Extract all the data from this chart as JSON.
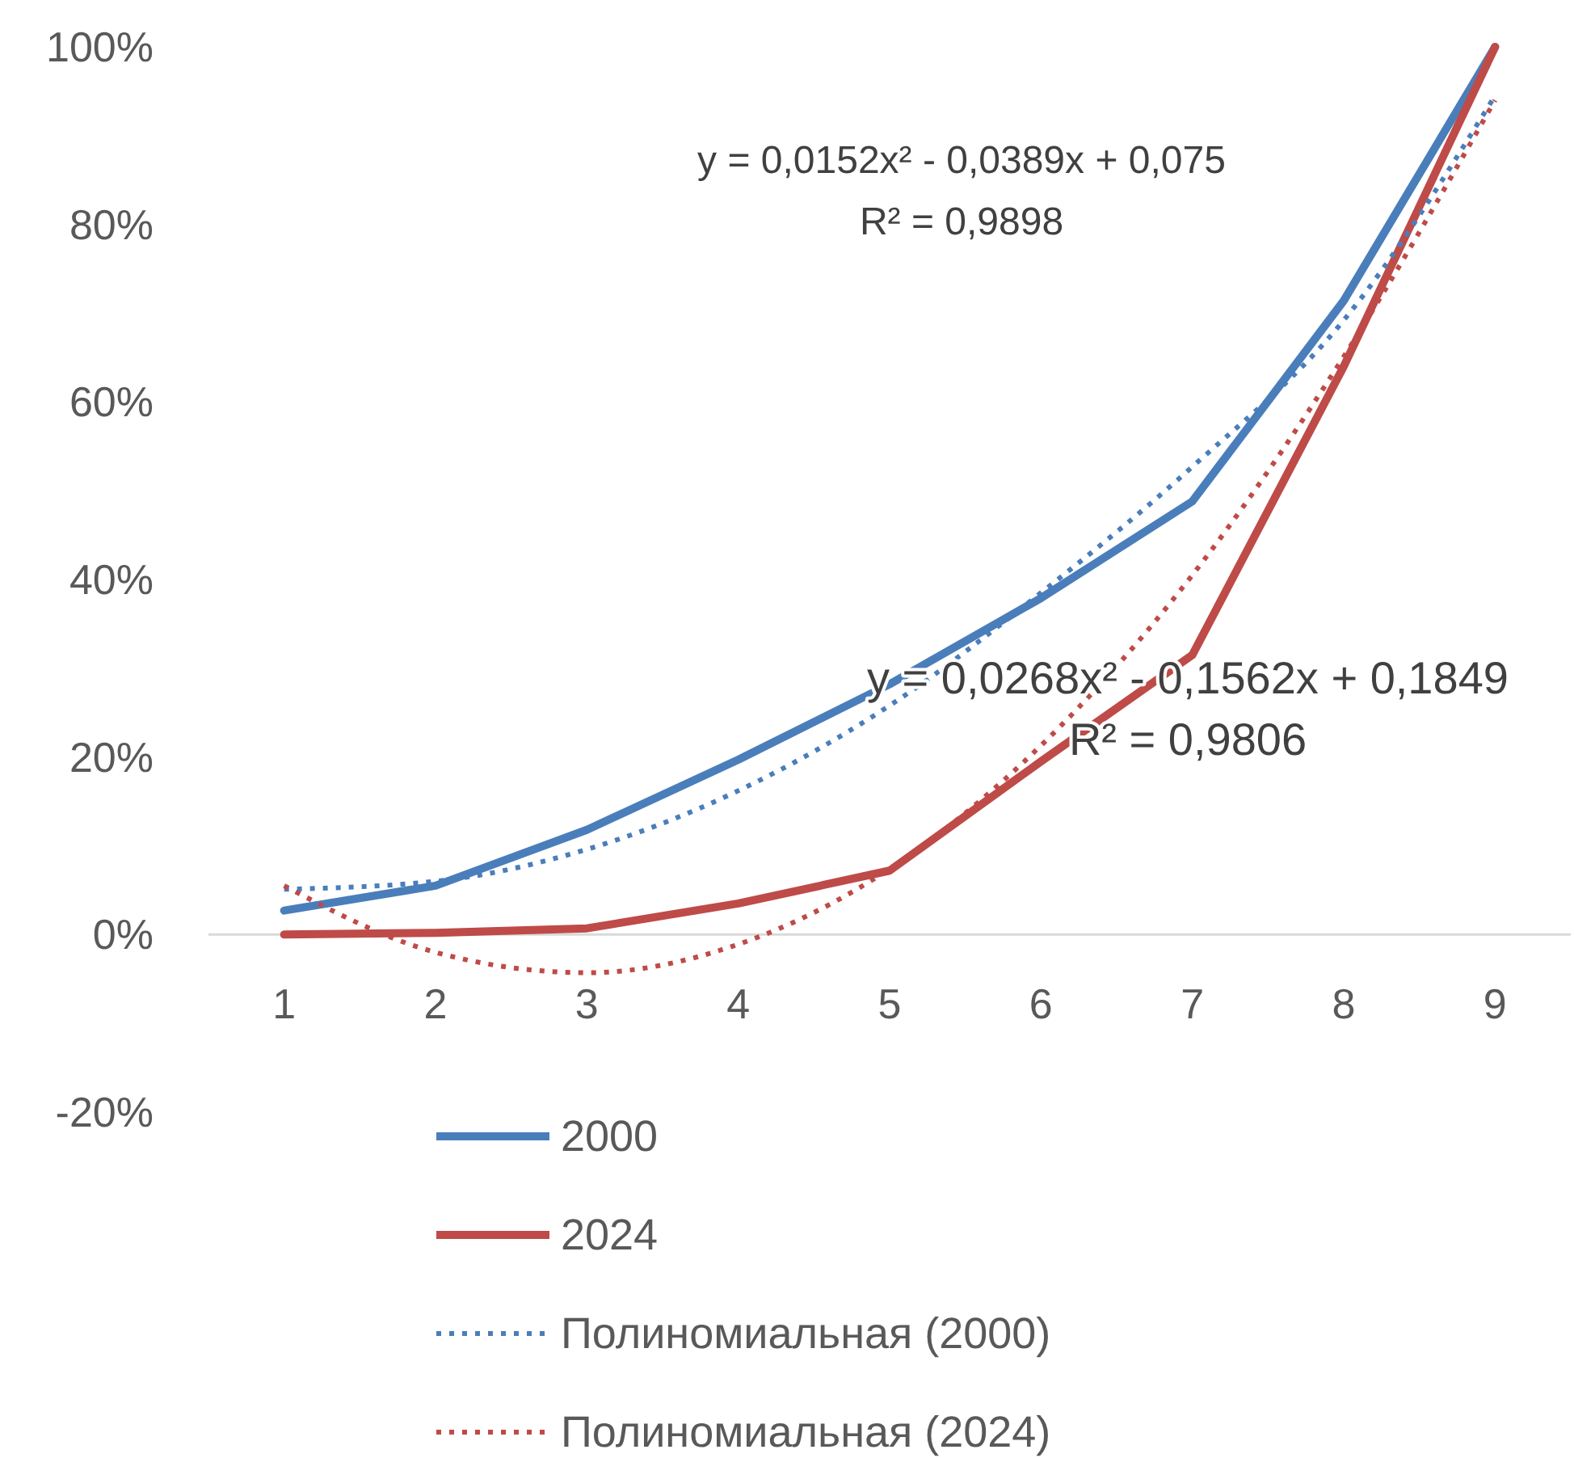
{
  "chart_data": {
    "type": "line",
    "x": [
      1,
      2,
      3,
      4,
      5,
      6,
      7,
      8,
      9
    ],
    "xlim": [
      0.5,
      9.5
    ],
    "xticks": [
      1,
      2,
      3,
      4,
      5,
      6,
      7,
      8,
      9
    ],
    "ylim": [
      -20,
      100
    ],
    "yticks": [
      {
        "value": -20,
        "label": "-20%"
      },
      {
        "value": 0,
        "label": "0%"
      },
      {
        "value": 20,
        "label": "20%"
      },
      {
        "value": 40,
        "label": "40%"
      },
      {
        "value": 60,
        "label": "60%"
      },
      {
        "value": 80,
        "label": "80%"
      },
      {
        "value": 100,
        "label": "100%"
      }
    ],
    "series": [
      {
        "name": "2000",
        "color": "#4a7ebb",
        "line_style": "solid",
        "values": [
          2.7,
          5.5,
          11.8,
          19.7,
          28.2,
          37.9,
          48.8,
          71.4,
          100
        ]
      },
      {
        "name": "2024",
        "color": "#be4b48",
        "line_style": "solid",
        "values": [
          0,
          0.2,
          0.7,
          3.5,
          7.2,
          19.5,
          31.5,
          64,
          100
        ]
      },
      {
        "name": "Полиномиальная (2000)",
        "color": "#4a7ebb",
        "line_style": "dotted",
        "values": [
          5.1,
          6.0,
          9.6,
          16.2,
          25.8,
          38.5,
          52.7,
          69.2,
          94.5
        ]
      },
      {
        "name": "Полиномиальная (2024)",
        "color": "#be4b48",
        "line_style": "dotted",
        "values": [
          5.5,
          -2.0,
          -4.3,
          -1.1,
          7.4,
          21.3,
          40.5,
          65.1,
          94
        ]
      }
    ],
    "annotations": [
      "y = 0,0152x² - 0,0389x + 0,075\nR² = 0,9898",
      "y = 0,0268x² - 0,1562x + 0,1849\nR² = 0,9806"
    ],
    "legend": "bottom",
    "grid": false
  }
}
